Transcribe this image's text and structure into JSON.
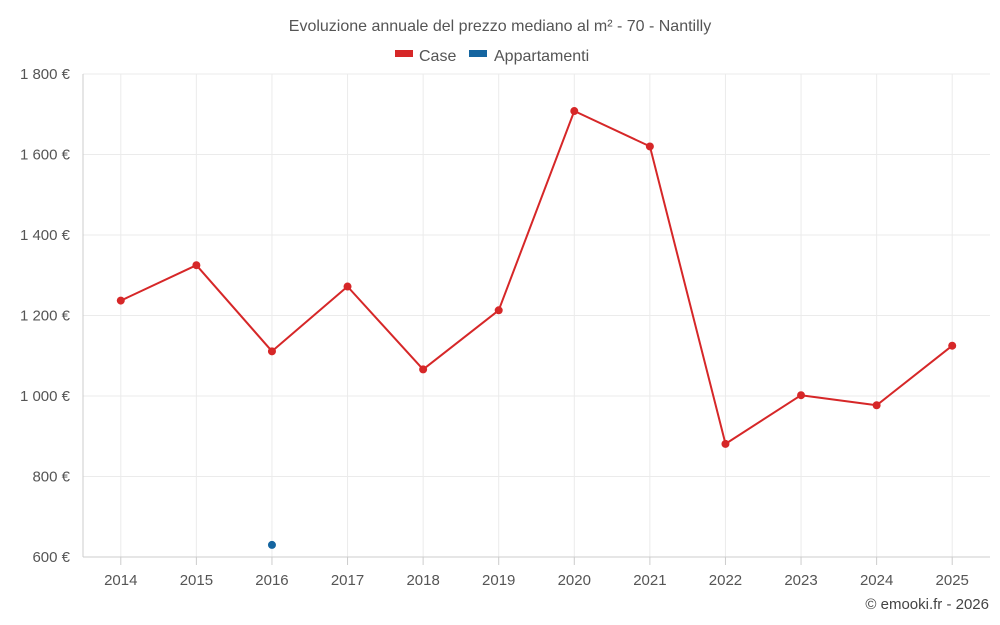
{
  "chart_data": {
    "type": "line",
    "title": "Evoluzione annuale del prezzo mediano al m² - 70 - Nantilly",
    "categories": [
      "2014",
      "2015",
      "2016",
      "2017",
      "2018",
      "2019",
      "2020",
      "2021",
      "2022",
      "2023",
      "2024",
      "2025"
    ],
    "series": [
      {
        "name": "Case",
        "color": "#d62728",
        "values": [
          1237,
          1325,
          1111,
          1272,
          1066,
          1213,
          1708,
          1620,
          881,
          1002,
          977,
          1125
        ]
      },
      {
        "name": "Appartamenti",
        "color": "#1565a0",
        "values": [
          null,
          null,
          630,
          null,
          null,
          null,
          null,
          null,
          null,
          null,
          null,
          null
        ]
      }
    ],
    "ylim": [
      600,
      1800
    ],
    "yticks": [
      600,
      800,
      1000,
      1200,
      1400,
      1600,
      1800
    ],
    "ytick_labels": [
      "600 €",
      "800 €",
      "1 000 €",
      "1 200 €",
      "1 400 €",
      "1 600 €",
      "1 800 €"
    ],
    "xlabel": "",
    "ylabel": "",
    "grid": true,
    "legend_position": "top-center"
  },
  "credit": "© emooki.fr - 2026"
}
